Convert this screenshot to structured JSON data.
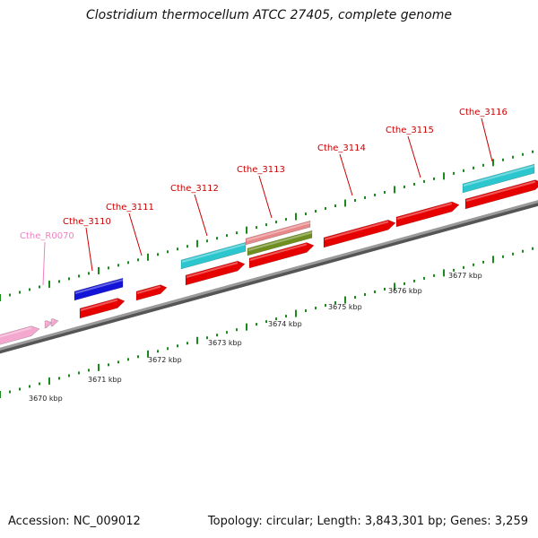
{
  "title": "Clostridium thermocellum ATCC 27405, complete genome",
  "footer": {
    "accession": "Accession: NC_009012",
    "stats": "Topology: circular; Length: 3,843,301 bp; Genes: 3,259"
  },
  "colors": {
    "backbone": "#7a7a7a",
    "tick": "#1a8a1a",
    "cds_forward": "#e60000",
    "cds_blue": "#1414d8",
    "cds_cyan": "#2cc6cf",
    "cds_pink": "#e8888a",
    "cds_olive": "#6e8f1f",
    "rna_pink": "#f4a8d0",
    "label_red": "#cc0000",
    "label_pink": "#f080c0"
  },
  "scale_labels": [
    "3670 kbp",
    "3671 kbp",
    "3672 kbp",
    "3673 kbp",
    "3674 kbp",
    "3675 kbp",
    "3676 kbp",
    "3677 kbp"
  ],
  "gene_labels": [
    "Cthe_R0070",
    "Cthe_3110",
    "Cthe_3111",
    "Cthe_3112",
    "Cthe_3113",
    "Cthe_3114",
    "Cthe_3115",
    "Cthe_3116"
  ]
}
